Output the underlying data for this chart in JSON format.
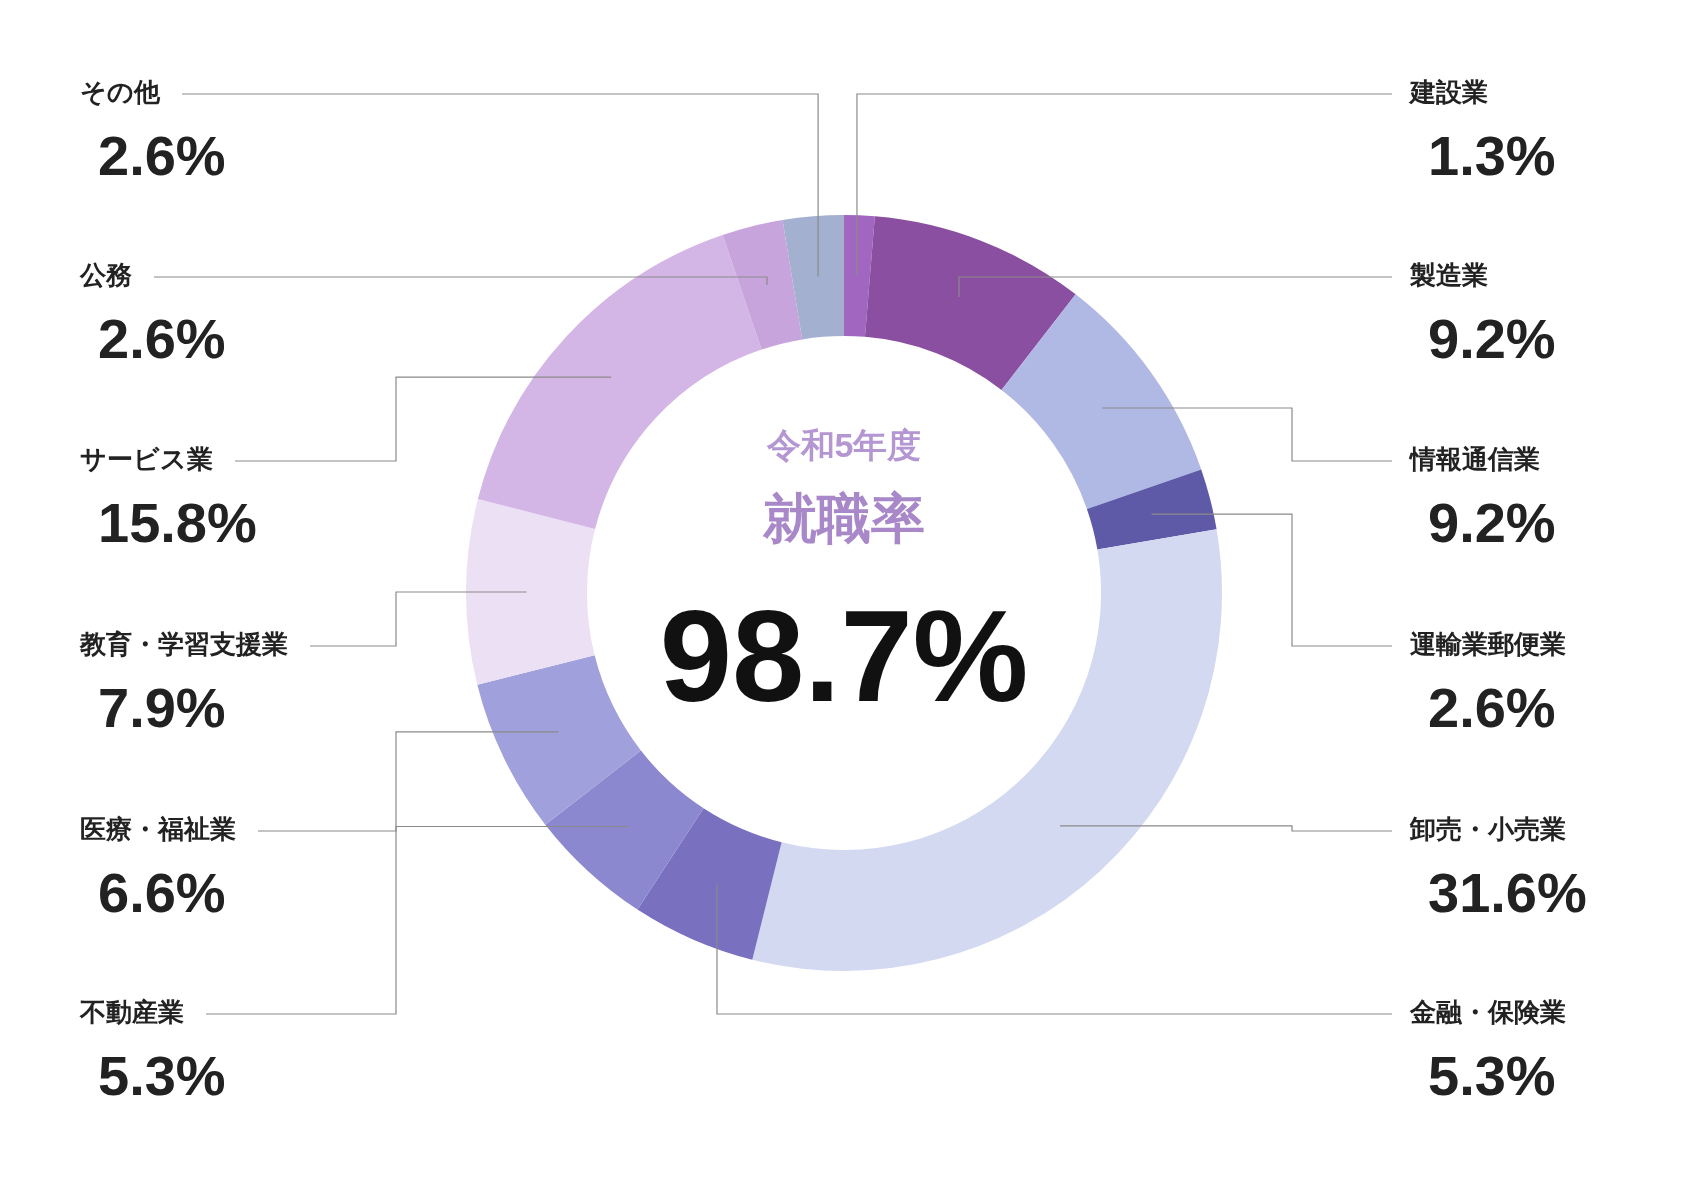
{
  "chart_data": {
    "type": "donut",
    "subtitle": "令和5年度",
    "title": "就職率",
    "annotations": [
      "98.7%"
    ],
    "categories": [
      "建設業",
      "製造業",
      "情報通信業",
      "運輸業郵便業",
      "卸売・小売業",
      "金融・保険業",
      "不動産業",
      "医療・福祉業",
      "教育・学習支援業",
      "サービス業",
      "公務",
      "その他"
    ],
    "values": [
      1.3,
      9.2,
      9.2,
      2.6,
      31.6,
      5.3,
      5.3,
      6.6,
      7.9,
      15.8,
      2.6,
      2.6
    ],
    "value_labels": [
      "1.3%",
      "9.2%",
      "9.2%",
      "2.6%",
      "31.6%",
      "5.3%",
      "5.3%",
      "6.6%",
      "7.9%",
      "15.8%",
      "2.6%",
      "2.6%"
    ],
    "colors": [
      "#a066c0",
      "#8a4fa0",
      "#b0b8e4",
      "#5e5aa8",
      "#d4d9f2",
      "#7a70c0",
      "#8c88d0",
      "#a0a0dc",
      "#ece0f4",
      "#d4b6e6",
      "#c8a4dc",
      "#a4b0d0"
    ],
    "legend": false
  }
}
